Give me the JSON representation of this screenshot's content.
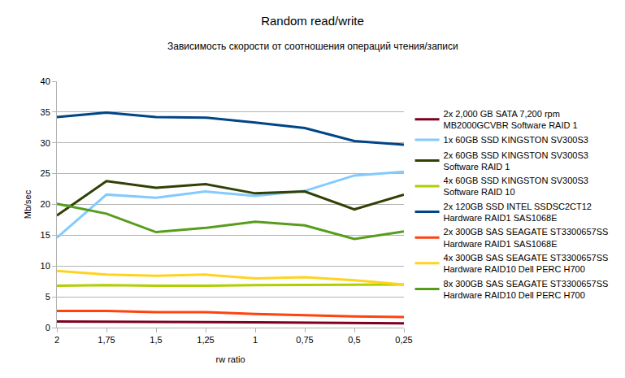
{
  "chart_data": {
    "type": "line",
    "title": "Random read/write",
    "subtitle": "Зависимость скорости от соотношения операций чтения/записи",
    "x_label": "rw ratio",
    "y_label": "Mb/sec",
    "categories": [
      "2",
      "1,75",
      "1,5",
      "1,25",
      "1",
      "0,75",
      "0,5",
      "0,25"
    ],
    "series": [
      {
        "name": "2x 2,000 GB SATA 7,200 rpm MB2000GCVBR Software RAID 1",
        "color": "#7e0021",
        "values": [
          1.0,
          1.0,
          0.9,
          0.9,
          0.85,
          0.8,
          0.75,
          0.7
        ]
      },
      {
        "name": "1x 60GB SSD KINGSTON SV300S3",
        "color": "#83caff",
        "values": [
          14.6,
          21.6,
          21.1,
          22.1,
          21.4,
          22.2,
          24.7,
          25.3
        ]
      },
      {
        "name": "2x 60GB SSD KINGSTON SV300S3 Software RAID 1",
        "color": "#314004",
        "values": [
          18.2,
          23.8,
          22.7,
          23.3,
          21.8,
          22.1,
          19.2,
          21.6
        ]
      },
      {
        "name": "4x 60GB SSD KINGSTON SV300S3 Software RAID 10",
        "color": "#aecf00",
        "values": [
          6.8,
          6.9,
          6.8,
          6.8,
          6.9,
          6.9,
          7.0,
          7.0
        ]
      },
      {
        "name": "2x 120GB SSD INTEL SSDSC2CT12 Hardware RAID1 SAS1068E",
        "color": "#004586",
        "values": [
          34.2,
          34.9,
          34.2,
          34.1,
          33.3,
          32.4,
          30.3,
          29.7
        ]
      },
      {
        "name": "2x 300GB SAS SEAGATE ST3300657SS Hardware RAID1 SAS1068E",
        "color": "#ff420e",
        "values": [
          2.7,
          2.7,
          2.5,
          2.5,
          2.2,
          2.0,
          1.8,
          1.7
        ]
      },
      {
        "name": "4x 300GB SAS SEAGATE ST3300657SS Hardware RAID10 Dell PERC H700",
        "color": "#ffd320",
        "values": [
          9.2,
          8.6,
          8.4,
          8.6,
          8.0,
          8.2,
          7.7,
          7.0
        ]
      },
      {
        "name": "8x 300GB SAS SEAGATE ST3300657SS Hardware RAID10 Dell PERC H700",
        "color": "#579d1c",
        "values": [
          20.1,
          18.5,
          15.5,
          16.2,
          17.2,
          16.6,
          14.4,
          15.6
        ]
      }
    ],
    "ylim": [
      0,
      40
    ],
    "yticks": [
      0,
      5,
      10,
      15,
      20,
      25,
      30,
      35,
      40
    ],
    "grid": true,
    "legend": "right"
  }
}
